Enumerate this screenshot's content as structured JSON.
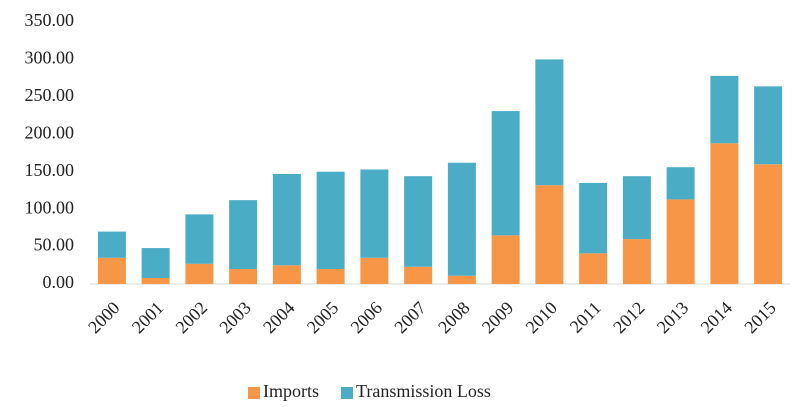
{
  "chart_data": {
    "type": "stacked_bar",
    "categories": [
      "2000",
      "2001",
      "2002",
      "2003",
      "2004",
      "2005",
      "2006",
      "2007",
      "2008",
      "2009",
      "2010",
      "2011",
      "2012",
      "2013",
      "2014",
      "2015"
    ],
    "series": [
      {
        "name": "Imports",
        "color": "#f79646",
        "values": [
          35,
          8,
          27,
          20,
          25,
          20,
          35,
          23,
          11,
          65,
          132,
          41,
          60,
          113,
          188,
          160
        ]
      },
      {
        "name": "Transmission Loss",
        "color": "#4bacc6",
        "values": [
          35,
          40,
          66,
          92,
          122,
          130,
          118,
          121,
          151,
          166,
          168,
          94,
          84,
          43,
          90,
          104
        ]
      }
    ],
    "ylim": [
      0,
      350
    ],
    "yticks": [
      {
        "value": 0,
        "label": "0.00"
      },
      {
        "value": 50,
        "label": "50.00"
      },
      {
        "value": 100,
        "label": "100.00"
      },
      {
        "value": 150,
        "label": "150.00"
      },
      {
        "value": 200,
        "label": "200.00"
      },
      {
        "value": 250,
        "label": "250.00"
      },
      {
        "value": 300,
        "label": "300.00"
      },
      {
        "value": 350,
        "label": "350.00"
      }
    ],
    "grid": false,
    "legend": "bottom"
  }
}
